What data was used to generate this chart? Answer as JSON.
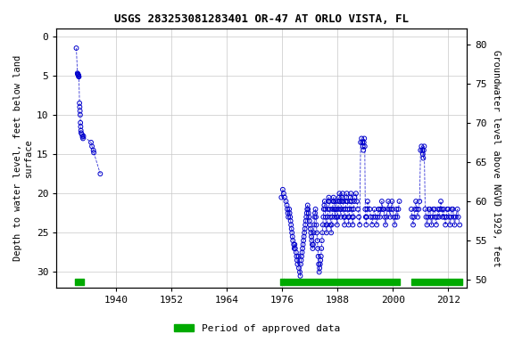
{
  "title": "USGS 283253081283401 OR-47 AT ORLO VISTA, FL",
  "ylabel_left": "Depth to water level, feet below land\nsurface",
  "ylabel_right": "Groundwater level above NGVD 1929, feet",
  "ylim_left": [
    32,
    -1
  ],
  "ylim_right": [
    49,
    82
  ],
  "xlim": [
    1927,
    2016
  ],
  "xticks": [
    1940,
    1952,
    1964,
    1976,
    1988,
    2000,
    2012
  ],
  "yticks_left": [
    0,
    5,
    10,
    15,
    20,
    25,
    30
  ],
  "yticks_right": [
    50,
    55,
    60,
    65,
    70,
    75,
    80
  ],
  "background_color": "#ffffff",
  "plot_bg_color": "#ffffff",
  "grid_color": "#c8c8c8",
  "dot_color": "#0000cc",
  "line_color": "#0000cc",
  "approved_color": "#00aa00",
  "legend_label": "Period of approved data",
  "segments": [
    {
      "years": [
        1931.3,
        1931.55,
        1931.62,
        1931.68,
        1931.72,
        1931.78,
        1931.82,
        1931.87,
        1932.0,
        1932.05,
        1932.1,
        1932.15,
        1932.2,
        1932.25,
        1932.3,
        1932.35,
        1932.55,
        1932.65,
        1932.75,
        1932.85,
        1934.5,
        1934.7,
        1935.0,
        1935.1,
        1936.5
      ],
      "depths": [
        1.5,
        4.7,
        4.8,
        4.85,
        4.9,
        5.0,
        5.1,
        5.15,
        8.5,
        9.0,
        9.5,
        10.0,
        11.0,
        11.5,
        12.0,
        12.3,
        12.5,
        12.8,
        13.0,
        12.7,
        13.5,
        14.0,
        14.5,
        14.8,
        17.5
      ]
    },
    {
      "years": [
        1975.8,
        1976.1,
        1976.3,
        1976.5,
        1976.8,
        1977.0,
        1977.1,
        1977.2,
        1977.3,
        1977.5,
        1977.6,
        1977.7,
        1977.8,
        1977.9,
        1978.0,
        1978.1,
        1978.2,
        1978.3,
        1978.5,
        1978.6,
        1978.7,
        1978.8,
        1979.0,
        1979.1,
        1979.2,
        1979.3,
        1979.5,
        1979.6,
        1979.8,
        1979.9,
        1980.0,
        1980.1,
        1980.2,
        1980.3,
        1980.4,
        1980.5,
        1980.6,
        1980.7,
        1980.8,
        1980.9,
        1981.0,
        1981.1,
        1981.2,
        1981.3,
        1981.4,
        1981.5,
        1981.6,
        1981.7,
        1981.8,
        1981.9,
        1982.0,
        1982.1,
        1982.2,
        1982.3,
        1982.4,
        1982.5,
        1982.6,
        1982.7,
        1982.8,
        1982.9,
        1983.0,
        1983.1,
        1983.2,
        1983.3,
        1983.4,
        1983.5,
        1983.6,
        1983.7,
        1983.8,
        1983.9,
        1984.0,
        1984.1,
        1984.2,
        1984.3,
        1984.4,
        1984.5,
        1984.6,
        1984.7,
        1984.8,
        1984.9,
        1985.0,
        1985.1,
        1985.2,
        1985.3,
        1985.4,
        1985.5,
        1985.6,
        1985.7,
        1985.8,
        1985.9,
        1986.0,
        1986.1,
        1986.2,
        1986.3,
        1986.4,
        1986.5,
        1986.6,
        1986.7,
        1986.8,
        1986.9,
        1987.0,
        1987.1,
        1987.2,
        1987.3,
        1987.4,
        1987.5,
        1987.6,
        1987.7,
        1987.8,
        1987.9,
        1988.0,
        1988.1,
        1988.2,
        1988.3,
        1988.4,
        1988.5,
        1988.6,
        1988.7,
        1988.8,
        1988.9,
        1989.0,
        1989.1,
        1989.2,
        1989.3,
        1989.4,
        1989.5,
        1989.6,
        1989.7,
        1989.8,
        1989.9,
        1990.0,
        1990.1,
        1990.2,
        1990.3,
        1990.4,
        1990.5,
        1990.6,
        1990.7,
        1990.8,
        1990.9,
        1991.0,
        1991.1,
        1991.2,
        1991.3,
        1991.4,
        1991.5,
        1991.6,
        1991.7,
        1992.0,
        1992.2,
        1992.4,
        1992.6,
        1992.8,
        1993.0,
        1993.2,
        1993.4,
        1993.5,
        1993.6,
        1993.7,
        1993.8,
        1993.9,
        1994.0,
        1994.1,
        1994.2,
        1994.3,
        1994.4,
        1994.5,
        1995.0,
        1995.2,
        1995.5,
        1995.7,
        1996.0,
        1996.2,
        1996.5,
        1996.7,
        1996.9,
        1997.0,
        1997.2,
        1997.4,
        1997.6,
        1997.8,
        1998.0,
        1998.2,
        1998.4,
        1998.6,
        1998.8,
        1999.0,
        1999.2,
        1999.4,
        1999.6,
        1999.8,
        2000.0,
        2000.2,
        2000.4,
        2000.6,
        2000.8,
        2001.0,
        2001.2,
        2001.4
      ],
      "depths": [
        20.5,
        19.5,
        20.0,
        20.5,
        21.0,
        21.5,
        22.0,
        22.5,
        23.0,
        22.0,
        22.5,
        23.0,
        23.5,
        24.0,
        24.5,
        25.0,
        25.5,
        26.0,
        26.5,
        27.0,
        26.5,
        27.0,
        27.5,
        28.0,
        28.5,
        29.0,
        28.0,
        29.5,
        30.0,
        30.5,
        29.0,
        28.5,
        28.0,
        27.5,
        27.0,
        26.5,
        26.0,
        25.5,
        25.0,
        24.5,
        24.0,
        23.5,
        23.0,
        22.5,
        22.0,
        21.5,
        22.0,
        22.5,
        23.0,
        23.5,
        24.0,
        24.5,
        25.0,
        25.5,
        26.0,
        26.5,
        27.0,
        26.5,
        25.0,
        24.0,
        23.0,
        22.5,
        22.0,
        23.0,
        24.0,
        25.0,
        26.0,
        27.0,
        28.0,
        29.0,
        30.0,
        29.5,
        29.0,
        28.5,
        28.0,
        27.0,
        26.0,
        25.0,
        24.0,
        23.0,
        22.0,
        21.5,
        21.0,
        22.0,
        23.0,
        24.0,
        25.0,
        24.0,
        23.0,
        22.0,
        21.0,
        20.5,
        21.0,
        22.0,
        23.0,
        24.0,
        25.0,
        24.0,
        23.0,
        22.0,
        21.0,
        20.5,
        21.0,
        22.0,
        23.0,
        22.0,
        21.0,
        22.0,
        23.0,
        24.0,
        23.0,
        22.0,
        21.0,
        20.5,
        20.0,
        21.0,
        22.0,
        23.0,
        22.0,
        21.0,
        20.5,
        20.0,
        21.0,
        22.0,
        23.0,
        24.0,
        23.0,
        22.0,
        21.0,
        20.5,
        20.0,
        21.0,
        22.0,
        23.0,
        24.0,
        23.0,
        22.0,
        21.0,
        20.5,
        20.0,
        21.0,
        22.0,
        23.0,
        24.0,
        23.0,
        22.0,
        21.0,
        20.5,
        20.0,
        21.0,
        22.0,
        23.0,
        24.0,
        13.5,
        13.0,
        13.5,
        14.0,
        14.5,
        13.5,
        13.0,
        14.0,
        22.0,
        23.0,
        24.0,
        23.0,
        22.0,
        21.0,
        22.0,
        23.0,
        24.0,
        23.0,
        22.0,
        23.0,
        24.0,
        23.0,
        22.0,
        22.0,
        23.0,
        22.0,
        21.0,
        22.0,
        22.0,
        23.0,
        24.0,
        23.0,
        22.0,
        21.0,
        22.0,
        23.0,
        22.0,
        21.0,
        22.0,
        23.0,
        24.0,
        23.0,
        22.0,
        23.0,
        22.0,
        21.0
      ]
    },
    {
      "years": [
        2004.0,
        2004.2,
        2004.4,
        2004.6,
        2004.8,
        2005.0,
        2005.2,
        2005.4,
        2005.6,
        2005.8,
        2006.0,
        2006.2,
        2006.4,
        2006.5,
        2006.6,
        2006.7,
        2006.8,
        2007.0,
        2007.2,
        2007.4,
        2007.6,
        2007.8,
        2008.0,
        2008.2,
        2008.4,
        2008.6,
        2008.8,
        2009.0,
        2009.2,
        2009.4,
        2009.6,
        2009.8,
        2010.0,
        2010.2,
        2010.4,
        2010.6,
        2010.8,
        2011.0,
        2011.2,
        2011.4,
        2011.6,
        2011.8,
        2012.0,
        2012.2,
        2012.4,
        2012.6,
        2012.8,
        2013.0,
        2013.2,
        2013.4,
        2013.6,
        2014.0,
        2014.2,
        2014.5
      ],
      "depths": [
        22.0,
        23.0,
        24.0,
        23.0,
        22.0,
        21.0,
        22.0,
        23.0,
        22.0,
        21.0,
        14.5,
        14.0,
        14.5,
        15.0,
        15.5,
        14.5,
        14.0,
        22.0,
        23.0,
        24.0,
        23.0,
        22.0,
        22.0,
        23.0,
        24.0,
        23.0,
        22.0,
        22.0,
        23.0,
        24.0,
        23.0,
        22.0,
        23.0,
        22.0,
        21.0,
        22.0,
        23.0,
        22.0,
        23.0,
        24.0,
        23.0,
        22.0,
        22.0,
        23.0,
        24.0,
        23.0,
        22.0,
        22.0,
        23.0,
        24.0,
        23.0,
        22.0,
        23.0,
        24.0
      ]
    }
  ],
  "approved_bars": [
    {
      "x_start": 1931.1,
      "x_end": 1933.0
    },
    {
      "x_start": 1975.6,
      "x_end": 1976.3
    },
    {
      "x_start": 1976.3,
      "x_end": 2001.5
    },
    {
      "x_start": 2004.0,
      "x_end": 2015.0
    }
  ]
}
